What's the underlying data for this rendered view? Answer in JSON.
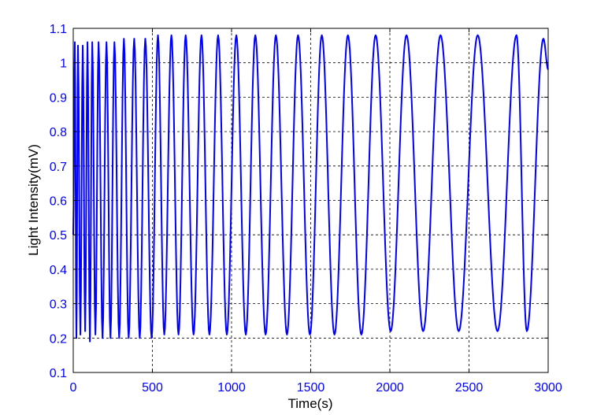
{
  "chart_data": {
    "type": "line",
    "title": "",
    "xlabel": "Time(s)",
    "ylabel": "Light Intensity(mV)",
    "xlim": [
      0,
      3000
    ],
    "ylim": [
      0.1,
      1.1
    ],
    "x_ticks": [
      "0",
      "500",
      "1000",
      "1500",
      "2000",
      "2500",
      "3000"
    ],
    "y_ticks": [
      "0.1",
      "0.2",
      "0.3",
      "0.4",
      "0.5",
      "0.6",
      "0.7",
      "0.8",
      "0.9",
      "1",
      "1.1"
    ],
    "grid": true,
    "line_color": "#0000ff",
    "tick_color": "#0000ff",
    "series": [
      {
        "x": [
          0,
          10,
          20,
          30,
          45,
          60,
          75,
          90,
          105,
          120,
          140,
          160,
          185,
          210,
          235,
          260,
          290,
          320,
          350,
          385,
          420,
          455,
          495,
          535,
          575,
          620,
          665,
          710,
          760,
          810,
          860,
          915,
          970,
          1030,
          1090,
          1150,
          1215,
          1280,
          1350,
          1420,
          1495,
          1570,
          1650,
          1735,
          1820,
          1910,
          2005,
          2105,
          2210,
          2320,
          2435,
          2555,
          2680,
          2800,
          2865,
          2970,
          3000
        ],
        "y": [
          0.5,
          1.06,
          0.2,
          1.05,
          0.21,
          1.05,
          0.22,
          1.06,
          0.19,
          1.06,
          0.21,
          1.06,
          0.2,
          1.06,
          0.2,
          1.06,
          0.2,
          1.07,
          0.2,
          1.07,
          0.2,
          1.07,
          0.2,
          1.08,
          0.21,
          1.08,
          0.21,
          1.08,
          0.21,
          1.08,
          0.21,
          1.08,
          0.21,
          1.08,
          0.21,
          1.08,
          0.21,
          1.08,
          0.21,
          1.08,
          0.21,
          1.08,
          0.21,
          1.08,
          0.21,
          1.08,
          0.22,
          1.08,
          0.22,
          1.08,
          0.22,
          1.08,
          0.22,
          1.08,
          0.22,
          1.07,
          0.98
        ]
      }
    ]
  }
}
